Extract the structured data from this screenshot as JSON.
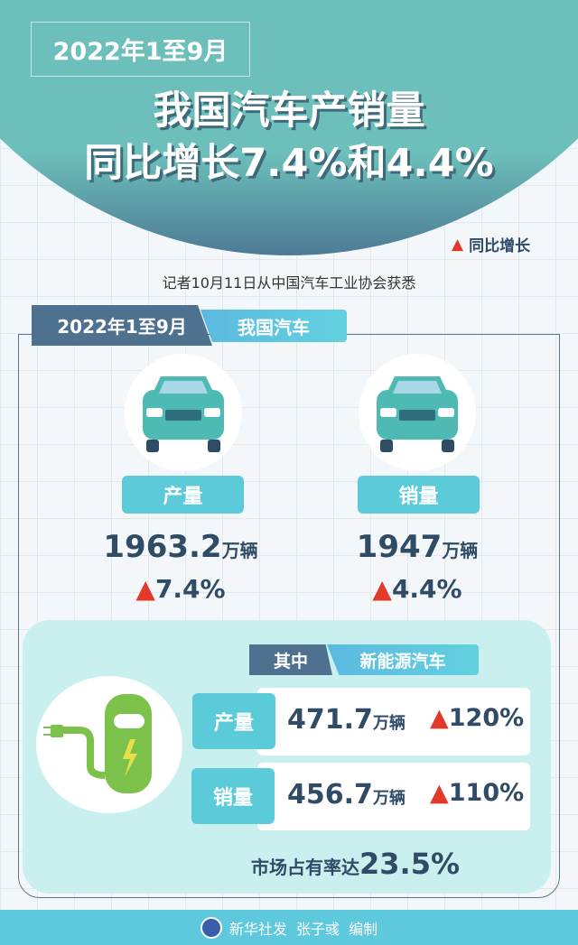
{
  "header": {
    "period": "2022年1至9月",
    "title_line1": "我国汽车产销量",
    "title_line2": "同比增长7.4%和4.4%"
  },
  "legend": {
    "icon": "red-up-triangle",
    "label": "同比增长"
  },
  "source_note": "记者10月11日从中国汽车工业协会获悉",
  "section": {
    "tab_period": "2022年1至9月",
    "tab_topic": "我国汽车"
  },
  "production": {
    "label": "产量",
    "value": "1963.2",
    "unit": "万辆",
    "growth": "7.4%"
  },
  "sales": {
    "label": "销量",
    "value": "1947",
    "unit": "万辆",
    "growth": "4.4%"
  },
  "nev": {
    "tab_prefix": "其中",
    "tab_topic": "新能源汽车",
    "rows": [
      {
        "label": "产量",
        "value": "471.7",
        "unit": "万辆",
        "growth": "120%"
      },
      {
        "label": "销量",
        "value": "456.7",
        "unit": "万辆",
        "growth": "110%"
      }
    ],
    "market_share_label": "市场占有率达",
    "market_share": "23.5%"
  },
  "footer": {
    "text": "新华社发  张子彧  编制"
  },
  "colors": {
    "teal": "#6cbfba",
    "navy": "#4f7190",
    "cyan": "#5ccbd9",
    "red": "#e2392b",
    "text": "#2f4b66",
    "green": "#7cc24a"
  }
}
